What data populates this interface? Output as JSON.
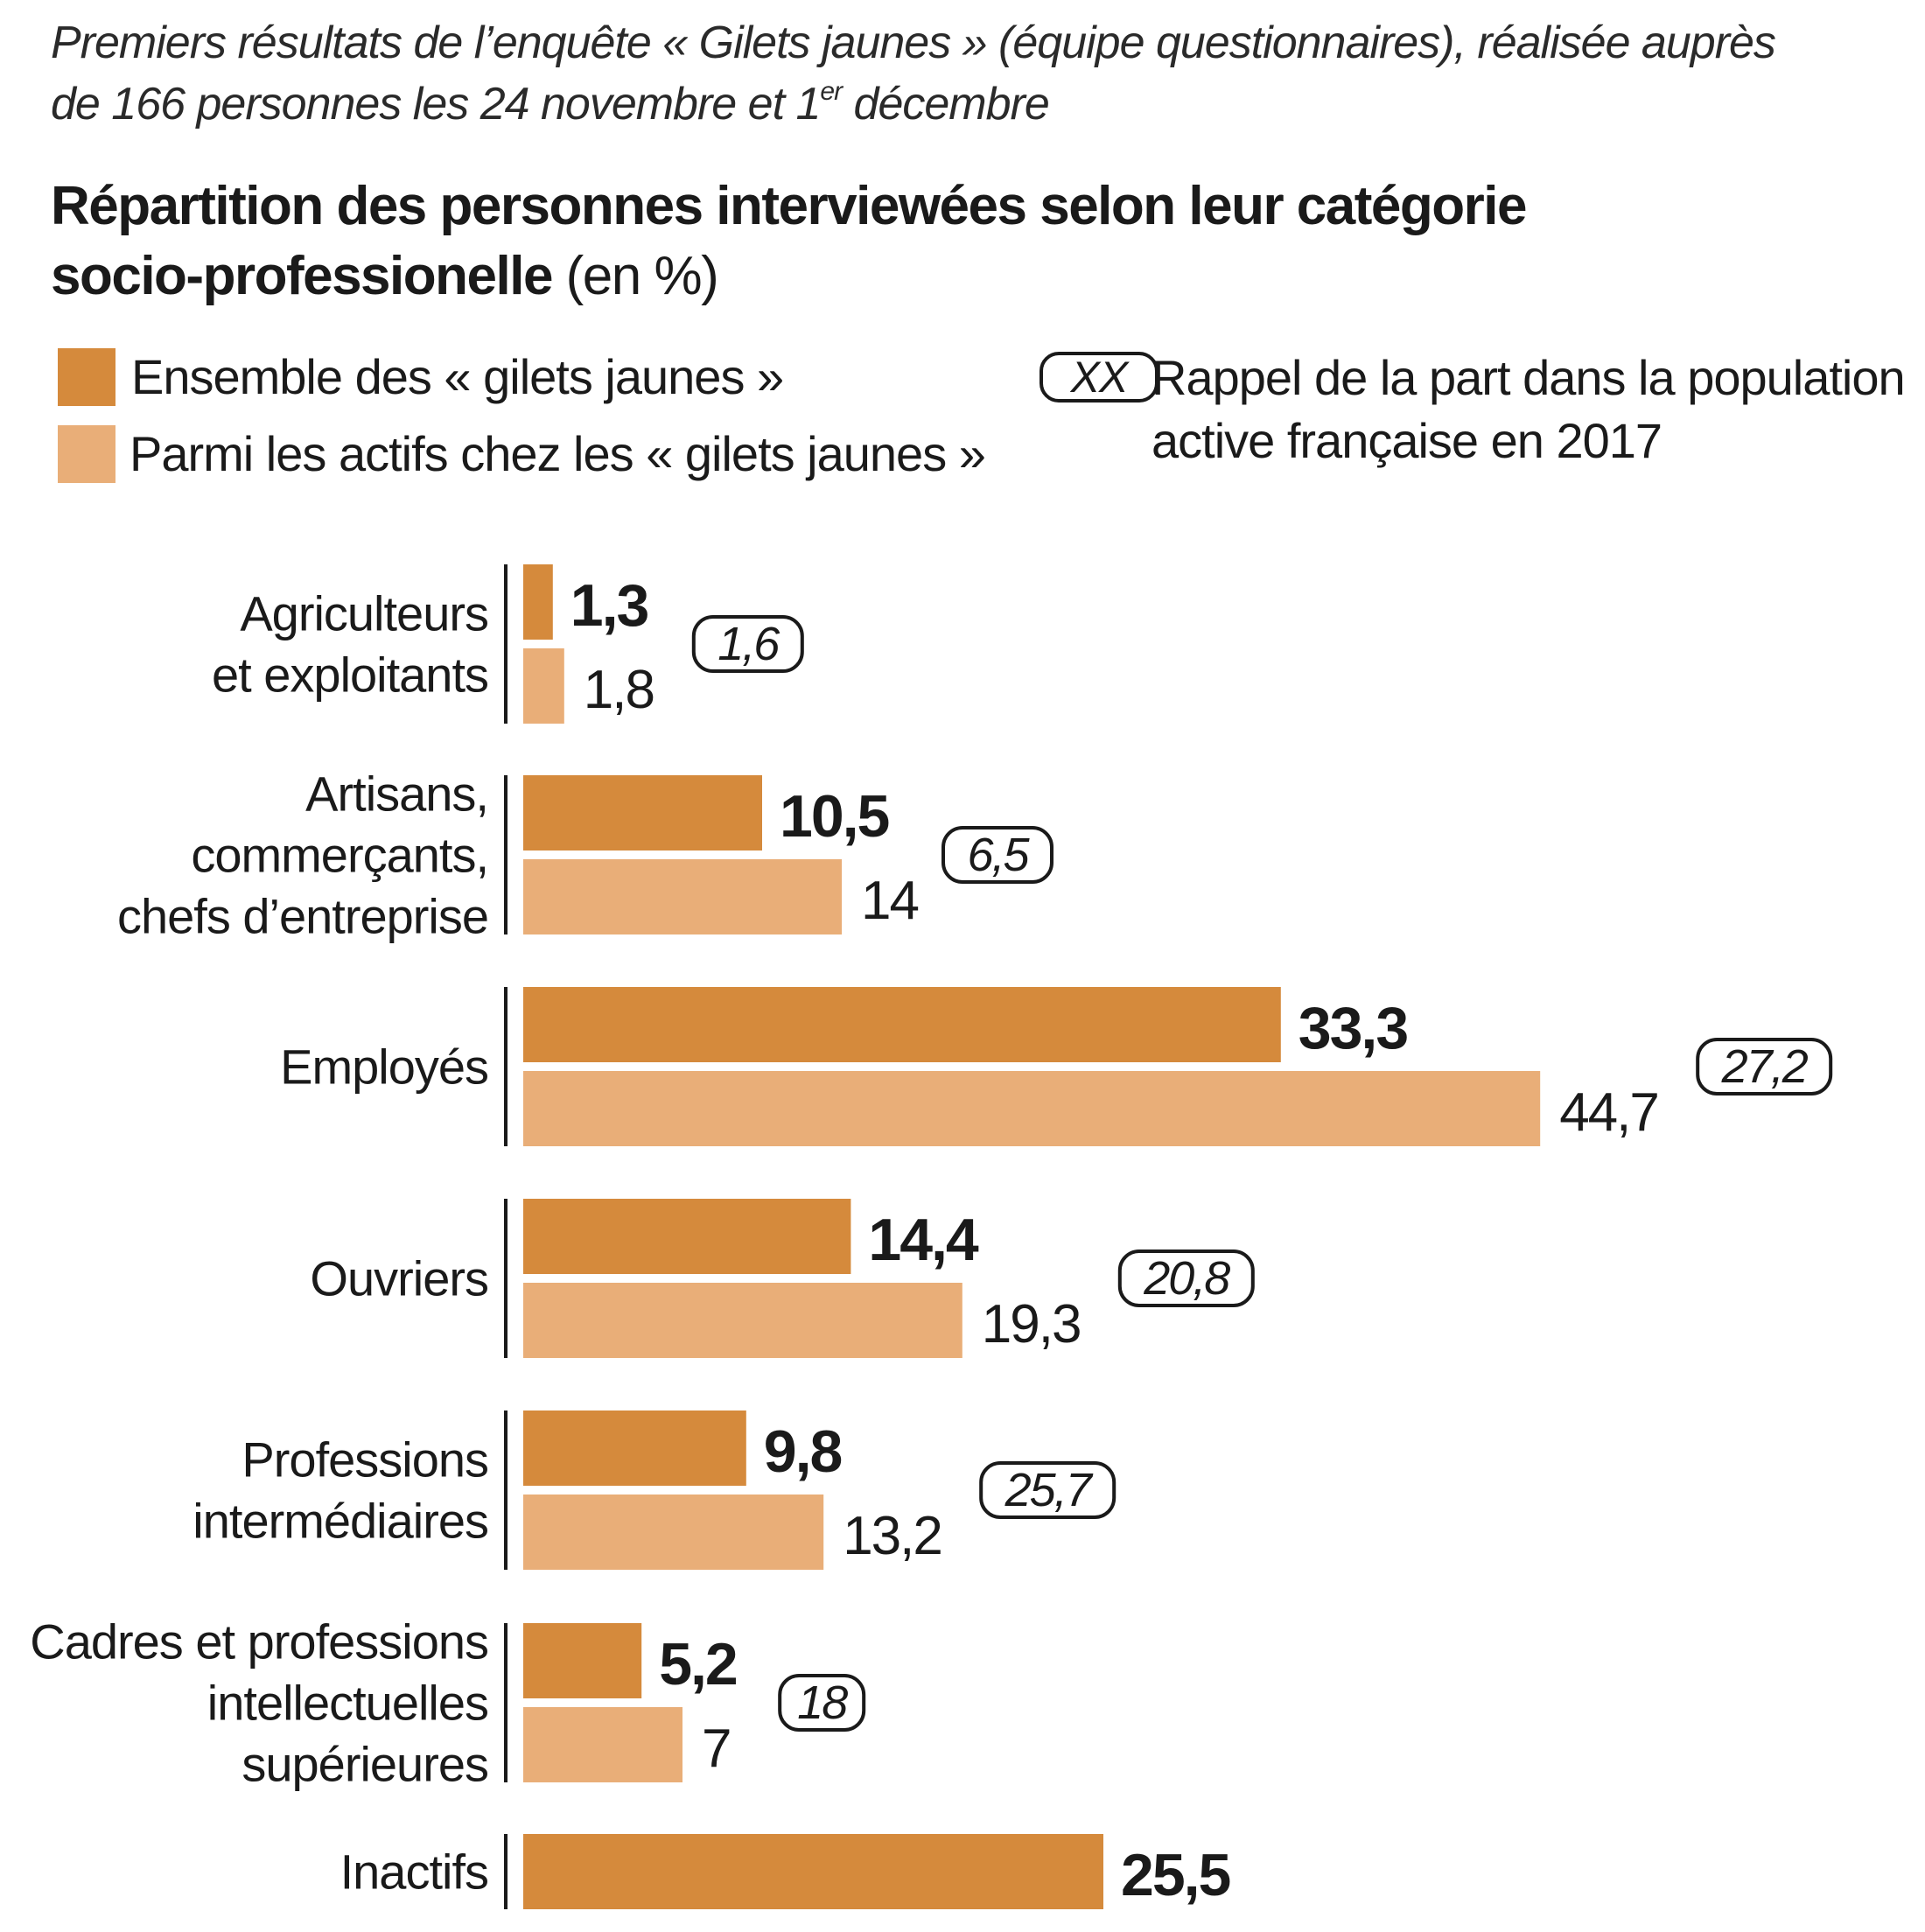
{
  "intro": {
    "line1": "Premiers résultats de l’enquête « Gilets jaunes » (équipe questionnaires), réalisée auprès",
    "line2a": "de 166 personnes les 24 novembre et 1",
    "line2sup": "er",
    "line2b": " décembre"
  },
  "title": {
    "line1": "Répartition des personnes interviewées selon leur catégorie",
    "line2": "socio-professionelle",
    "unit": " (en %)"
  },
  "legend": {
    "all": "Ensemble des « gilets jaunes »",
    "active": "Parmi les actifs chez les « gilets jaunes »",
    "badge": "XX",
    "note_line1": "Rappel de la part dans la population",
    "note_line2": "active française en 2017"
  },
  "colors": {
    "all": "#d58a3c",
    "active": "#e9ae78",
    "text": "#1a1a1a"
  },
  "chart_data": {
    "type": "bar",
    "orientation": "horizontal",
    "title": "Répartition des personnes interviewées selon leur catégorie socio-professionelle (en %)",
    "categories": [
      [
        "Agriculteurs",
        "et exploitants"
      ],
      [
        "Artisans,",
        "commerçants,",
        "chefs d’entreprise"
      ],
      [
        "Employés"
      ],
      [
        "Ouvriers"
      ],
      [
        "Professions",
        "intermédiaires"
      ],
      [
        "Cadres et professions",
        "intellectuelles",
        "supérieures"
      ],
      [
        "Inactifs"
      ]
    ],
    "series": [
      {
        "name": "Ensemble des « gilets jaunes »",
        "values": [
          1.3,
          10.5,
          33.3,
          14.4,
          9.8,
          5.2,
          25.5
        ],
        "labels": [
          "1,3",
          "10,5",
          "33,3",
          "14,4",
          "9,8",
          "5,2",
          "25,5"
        ]
      },
      {
        "name": "Parmi les actifs chez les « gilets jaunes »",
        "values": [
          1.8,
          14,
          44.7,
          19.3,
          13.2,
          7,
          null
        ],
        "labels": [
          "1,8",
          "14",
          "44,7",
          "19,3",
          "13,2",
          "7",
          ""
        ]
      }
    ],
    "reference": {
      "name": "Rappel de la part dans la population active française en 2017",
      "values": [
        1.6,
        6.5,
        27.2,
        20.8,
        25.7,
        18,
        null
      ],
      "labels": [
        "1,6",
        "6,5",
        "27,2",
        "20,8",
        "25,7",
        "18",
        ""
      ]
    },
    "xlim": [
      0,
      50
    ],
    "grid": false,
    "legend": "top"
  }
}
